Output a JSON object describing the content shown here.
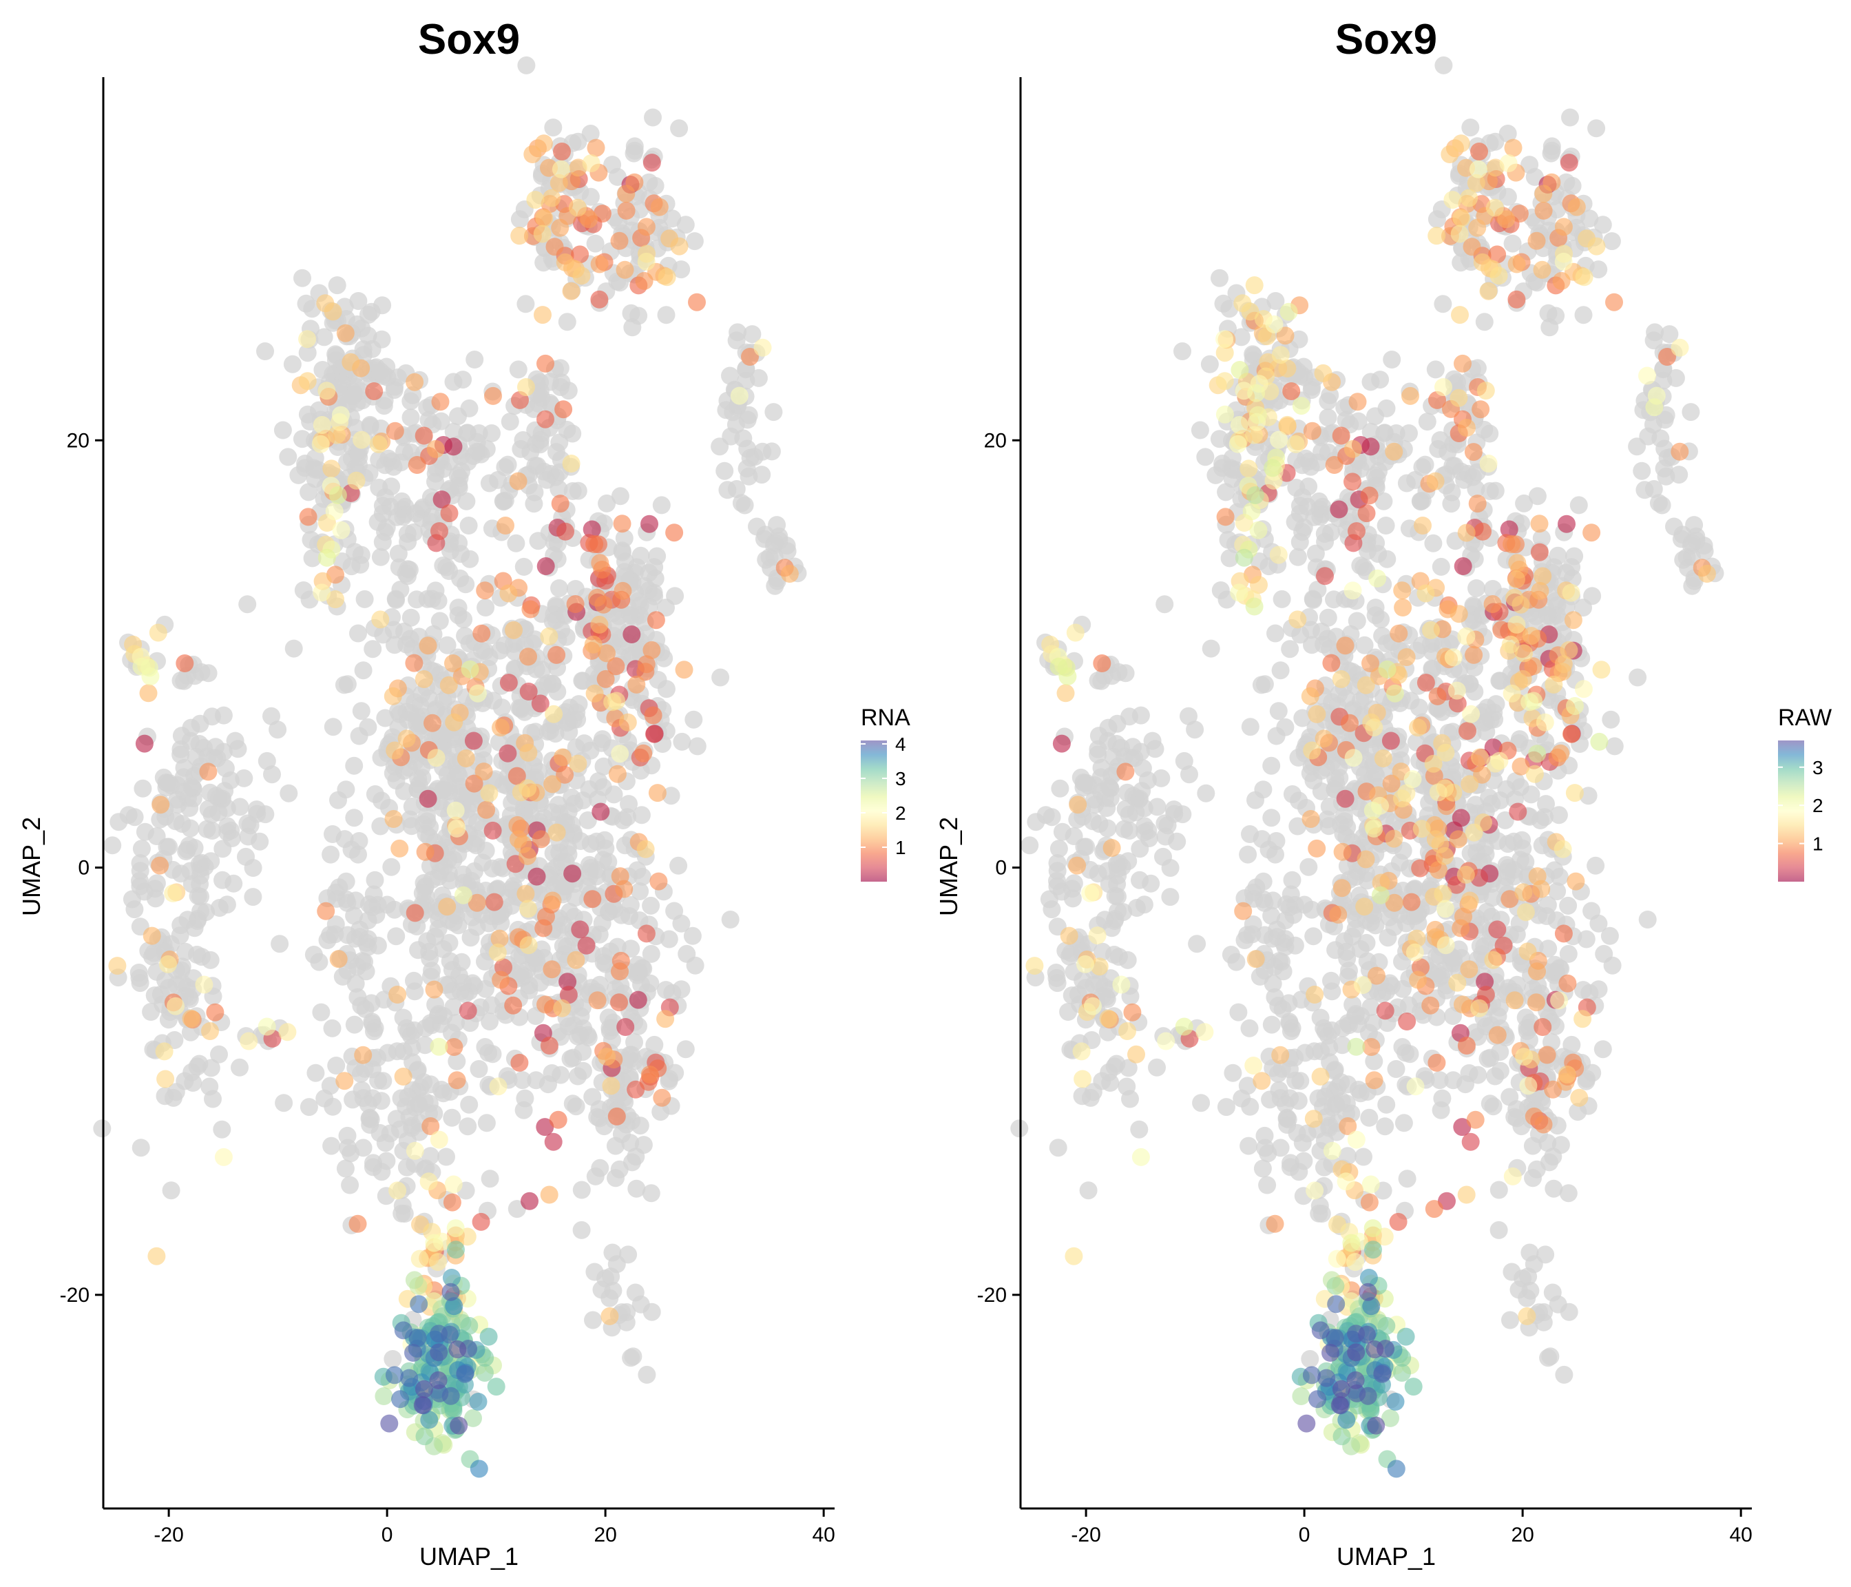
{
  "chart_data": [
    {
      "type": "scatter",
      "title": "Sox9",
      "xlabel": "UMAP_1",
      "ylabel": "UMAP_2",
      "xlim": [
        -26,
        41
      ],
      "ylim": [
        -30,
        37
      ],
      "xticks": [
        -20,
        0,
        20,
        40
      ],
      "yticks": [
        -20,
        0,
        20
      ],
      "legend": {
        "title": "RNA",
        "placement": "right",
        "ticks": [
          1,
          2,
          3,
          4
        ],
        "min": 0,
        "max": 4.1
      },
      "color_scale": [
        "#5e4fa2",
        "#3288bd",
        "#66c2a5",
        "#abdda4",
        "#e6f598",
        "#ffffbf",
        "#fee08b",
        "#fdae61",
        "#f46d43",
        "#d53e4f",
        "#9e0142"
      ],
      "background_color": "#d3d3d3",
      "clusters": [
        {
          "cx": 16,
          "cy": 31,
          "sx": 2.0,
          "sy": 2.2,
          "n": 90,
          "expr": 0.45,
          "lvl": 1.2
        },
        {
          "cx": 23,
          "cy": 30,
          "sx": 2.2,
          "sy": 2.2,
          "n": 90,
          "expr": 0.25,
          "lvl": 1.0
        },
        {
          "cx": -3,
          "cy": 23,
          "sx": 2.6,
          "sy": 2.2,
          "n": 110,
          "expr": 0.05,
          "lvl": 1.5
        },
        {
          "cx": -5,
          "cy": 18,
          "sx": 1.6,
          "sy": 2.8,
          "n": 90,
          "expr": 0.3,
          "lvl": 1.6
        },
        {
          "cx": 3,
          "cy": 18,
          "sx": 3.5,
          "sy": 2.6,
          "n": 140,
          "expr": 0.08,
          "lvl": 0.6
        },
        {
          "cx": 14,
          "cy": 20,
          "sx": 2.2,
          "sy": 2.5,
          "n": 80,
          "expr": 0.12,
          "lvl": 0.9
        },
        {
          "cx": 33,
          "cy": 21,
          "sx": 1.2,
          "sy": 2.5,
          "n": 45,
          "expr": 0.18,
          "lvl": 1.5
        },
        {
          "cx": 36,
          "cy": 15,
          "sx": 1.0,
          "sy": 1.1,
          "n": 20,
          "expr": 0.1,
          "lvl": 1.2
        },
        {
          "cx": -22,
          "cy": 10,
          "sx": 0.8,
          "sy": 0.9,
          "n": 18,
          "expr": 0.35,
          "lvl": 1.8
        },
        {
          "cx": -15,
          "cy": 4,
          "sx": 2.6,
          "sy": 2.6,
          "n": 70,
          "expr": 0.03,
          "lvl": 1.5
        },
        {
          "cx": -19,
          "cy": -3,
          "sx": 2.4,
          "sy": 5.0,
          "n": 170,
          "expr": 0.12,
          "lvl": 1.2
        },
        {
          "cx": -11,
          "cy": -8,
          "sx": 0.9,
          "sy": 0.4,
          "n": 8,
          "expr": 0.5,
          "lvl": 1.8
        },
        {
          "cx": -3,
          "cy": -3,
          "sx": 1.6,
          "sy": 2.6,
          "n": 50,
          "expr": 0.04,
          "lvl": 1.2
        },
        {
          "cx": 0,
          "cy": -11,
          "sx": 3.2,
          "sy": 2.8,
          "n": 110,
          "expr": 0.12,
          "lvl": 1.3
        },
        {
          "cx": 3,
          "cy": 7,
          "sx": 3.0,
          "sy": 3.0,
          "n": 130,
          "expr": 0.1,
          "lvl": 1.2
        },
        {
          "cx": 6,
          "cy": 1,
          "sx": 3.0,
          "sy": 6.0,
          "n": 300,
          "expr": 0.1,
          "lvl": 1.3
        },
        {
          "cx": 13,
          "cy": 5,
          "sx": 2.8,
          "sy": 4.5,
          "n": 230,
          "expr": 0.22,
          "lvl": 0.8
        },
        {
          "cx": 14,
          "cy": -3,
          "sx": 2.6,
          "sy": 4.0,
          "n": 170,
          "expr": 0.15,
          "lvl": 0.8
        },
        {
          "cx": 21,
          "cy": 13,
          "sx": 2.5,
          "sy": 2.0,
          "n": 100,
          "expr": 0.2,
          "lvl": 0.8
        },
        {
          "cx": 22,
          "cy": 8,
          "sx": 2.8,
          "sy": 2.5,
          "n": 120,
          "expr": 0.25,
          "lvl": 0.9
        },
        {
          "cx": 21,
          "cy": -4,
          "sx": 3.2,
          "sy": 4.5,
          "n": 200,
          "expr": 0.12,
          "lvl": 0.8
        },
        {
          "cx": 22,
          "cy": -10,
          "sx": 2.2,
          "sy": 2.0,
          "n": 60,
          "expr": 0.18,
          "lvl": 0.9
        },
        {
          "cx": 21,
          "cy": -20.5,
          "sx": 1.2,
          "sy": 1.3,
          "n": 22,
          "expr": 0.15,
          "lvl": 1.2
        },
        {
          "cx": 5,
          "cy": -18,
          "sx": 1.6,
          "sy": 1.8,
          "n": 40,
          "expr": 0.85,
          "lvl": 1.5
        },
        {
          "cx": 5,
          "cy": -23.5,
          "sx": 1.8,
          "sy": 1.7,
          "n": 170,
          "expr": 0.95,
          "lvl": 3.2
        }
      ]
    },
    {
      "type": "scatter",
      "title": "Sox9",
      "xlabel": "UMAP_1",
      "ylabel": "UMAP_2",
      "xlim": [
        -26,
        41
      ],
      "ylim": [
        -30,
        37
      ],
      "xticks": [
        -20,
        0,
        20,
        40
      ],
      "yticks": [
        -20,
        0,
        20
      ],
      "legend": {
        "title": "RAW",
        "placement": "right",
        "ticks": [
          1,
          2,
          3
        ],
        "min": 0,
        "max": 3.7
      },
      "color_scale": [
        "#5e4fa2",
        "#3288bd",
        "#66c2a5",
        "#abdda4",
        "#e6f598",
        "#ffffbf",
        "#fee08b",
        "#fdae61",
        "#f46d43",
        "#d53e4f",
        "#9e0142"
      ],
      "background_color": "#d3d3d3",
      "clusters": [
        {
          "cx": 16,
          "cy": 31,
          "sx": 2.0,
          "sy": 2.2,
          "n": 90,
          "expr": 0.45,
          "lvl": 1.2
        },
        {
          "cx": 23,
          "cy": 30,
          "sx": 2.2,
          "sy": 2.2,
          "n": 90,
          "expr": 0.25,
          "lvl": 1.0
        },
        {
          "cx": -3,
          "cy": 23,
          "sx": 2.6,
          "sy": 2.2,
          "n": 110,
          "expr": 0.3,
          "lvl": 1.5
        },
        {
          "cx": -5,
          "cy": 18,
          "sx": 1.6,
          "sy": 2.8,
          "n": 90,
          "expr": 0.35,
          "lvl": 1.6
        },
        {
          "cx": 3,
          "cy": 18,
          "sx": 3.5,
          "sy": 2.6,
          "n": 140,
          "expr": 0.1,
          "lvl": 0.6
        },
        {
          "cx": 14,
          "cy": 20,
          "sx": 2.2,
          "sy": 2.5,
          "n": 80,
          "expr": 0.2,
          "lvl": 1.0
        },
        {
          "cx": 33,
          "cy": 21,
          "sx": 1.2,
          "sy": 2.5,
          "n": 45,
          "expr": 0.22,
          "lvl": 1.3
        },
        {
          "cx": 36,
          "cy": 15,
          "sx": 1.0,
          "sy": 1.1,
          "n": 20,
          "expr": 0.1,
          "lvl": 1.2
        },
        {
          "cx": -22,
          "cy": 10,
          "sx": 0.8,
          "sy": 0.9,
          "n": 18,
          "expr": 0.35,
          "lvl": 1.8
        },
        {
          "cx": -15,
          "cy": 4,
          "sx": 2.6,
          "sy": 2.6,
          "n": 70,
          "expr": 0.06,
          "lvl": 1.3
        },
        {
          "cx": -19,
          "cy": -3,
          "sx": 2.4,
          "sy": 5.0,
          "n": 170,
          "expr": 0.14,
          "lvl": 1.2
        },
        {
          "cx": -11,
          "cy": -8,
          "sx": 0.9,
          "sy": 0.4,
          "n": 8,
          "expr": 0.5,
          "lvl": 1.8
        },
        {
          "cx": -3,
          "cy": -3,
          "sx": 1.6,
          "sy": 2.6,
          "n": 50,
          "expr": 0.04,
          "lvl": 1.2
        },
        {
          "cx": 0,
          "cy": -11,
          "sx": 3.2,
          "sy": 2.8,
          "n": 110,
          "expr": 0.14,
          "lvl": 1.3
        },
        {
          "cx": 3,
          "cy": 7,
          "sx": 3.0,
          "sy": 3.0,
          "n": 130,
          "expr": 0.15,
          "lvl": 1.0
        },
        {
          "cx": 6,
          "cy": 1,
          "sx": 3.0,
          "sy": 6.0,
          "n": 300,
          "expr": 0.18,
          "lvl": 1.3
        },
        {
          "cx": 13,
          "cy": 5,
          "sx": 2.8,
          "sy": 4.5,
          "n": 230,
          "expr": 0.32,
          "lvl": 0.9
        },
        {
          "cx": 14,
          "cy": -3,
          "sx": 2.6,
          "sy": 4.0,
          "n": 170,
          "expr": 0.2,
          "lvl": 0.9
        },
        {
          "cx": 21,
          "cy": 13,
          "sx": 2.5,
          "sy": 2.0,
          "n": 100,
          "expr": 0.25,
          "lvl": 0.9
        },
        {
          "cx": 22,
          "cy": 8,
          "sx": 2.8,
          "sy": 2.5,
          "n": 120,
          "expr": 0.35,
          "lvl": 1.2
        },
        {
          "cx": 21,
          "cy": -4,
          "sx": 3.2,
          "sy": 4.5,
          "n": 200,
          "expr": 0.15,
          "lvl": 0.9
        },
        {
          "cx": 22,
          "cy": -10,
          "sx": 2.2,
          "sy": 2.0,
          "n": 60,
          "expr": 0.3,
          "lvl": 1.2
        },
        {
          "cx": 21,
          "cy": -20.5,
          "sx": 1.2,
          "sy": 1.3,
          "n": 22,
          "expr": 0.15,
          "lvl": 1.2
        },
        {
          "cx": 5,
          "cy": -18,
          "sx": 1.6,
          "sy": 1.8,
          "n": 40,
          "expr": 0.85,
          "lvl": 1.5
        },
        {
          "cx": 5,
          "cy": -23.5,
          "sx": 1.8,
          "sy": 1.7,
          "n": 170,
          "expr": 0.95,
          "lvl": 2.9
        }
      ]
    }
  ]
}
